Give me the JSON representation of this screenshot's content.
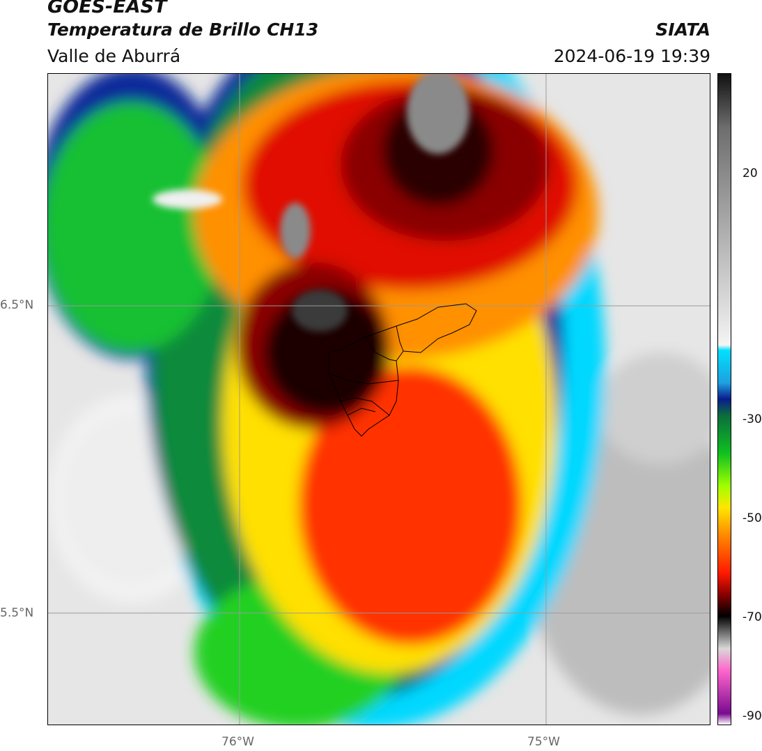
{
  "header": {
    "satellite": "GOES-EAST",
    "product": "Temperatura de Brillo CH13",
    "region": "Valle de Aburrá",
    "organization": "SIATA",
    "timestamp": "2024-06-19 19:39"
  },
  "axes": {
    "lat_ticks": [
      "6.5°N",
      "5.5°N"
    ],
    "lon_ticks": [
      "76°W",
      "75°W"
    ]
  },
  "colorbar": {
    "ticks": [
      "20",
      "-30",
      "-50",
      "-70",
      "-90"
    ],
    "min": -90,
    "max": 30,
    "stops": [
      {
        "value": 30,
        "color": "#111111"
      },
      {
        "value": 20,
        "color": "#6e6e6e"
      },
      {
        "value": -20,
        "color": "#f4f4f4"
      },
      {
        "value": -21,
        "color": "#00e0ff"
      },
      {
        "value": -27,
        "color": "#1ea0e0"
      },
      {
        "value": -30,
        "color": "#0a1c8c"
      },
      {
        "value": -33,
        "color": "#0a6e3c"
      },
      {
        "value": -40,
        "color": "#10c020"
      },
      {
        "value": -46,
        "color": "#a0ff00"
      },
      {
        "value": -50,
        "color": "#ffe600"
      },
      {
        "value": -55,
        "color": "#ff8a00"
      },
      {
        "value": -62,
        "color": "#ff1a00"
      },
      {
        "value": -66,
        "color": "#8a0000"
      },
      {
        "value": -70,
        "color": "#000000"
      },
      {
        "value": -76,
        "color": "#d8d8d8"
      },
      {
        "value": -80,
        "color": "#ff66cc"
      },
      {
        "value": -88,
        "color": "#7a0a90"
      },
      {
        "value": -90,
        "color": "#ffffff"
      }
    ]
  }
}
